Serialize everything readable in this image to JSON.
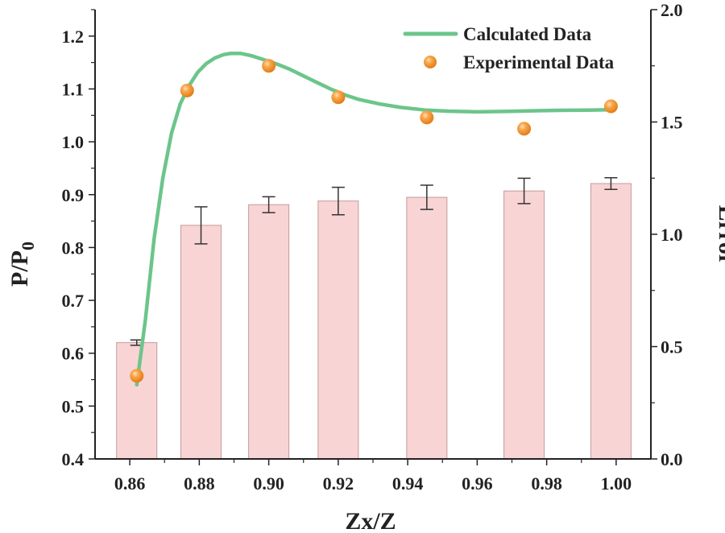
{
  "chart_data": {
    "type": "bar",
    "title": "",
    "xlabel": "Zx/Z",
    "ylabel": "P/P",
    "ylabel_subscript": "0",
    "y2label": "Error",
    "xlim": [
      0.85,
      1.01
    ],
    "ylim": [
      0.4,
      1.25
    ],
    "y2lim": [
      0.0,
      2.0
    ],
    "x_ticks": [
      "0.86",
      "0.88",
      "0.90",
      "0.92",
      "0.94",
      "0.96",
      "0.98",
      "1.00"
    ],
    "y_ticks": [
      "0.4",
      "0.5",
      "0.6",
      "0.7",
      "0.8",
      "0.9",
      "1.0",
      "1.1",
      "1.2"
    ],
    "y2_ticks": [
      "0.0",
      "0.5",
      "1.0",
      "1.5",
      "2.0"
    ],
    "legend": [
      "Calculated Data",
      "Experimental Data"
    ],
    "legend_position": "top-right",
    "bars": [
      {
        "x": 0.862,
        "value": 0.62,
        "err": 0.005
      },
      {
        "x": 0.8805,
        "value": 0.842,
        "err": 0.035
      },
      {
        "x": 0.9,
        "value": 0.881,
        "err": 0.015
      },
      {
        "x": 0.92,
        "value": 0.888,
        "err": 0.026
      },
      {
        "x": 0.9455,
        "value": 0.895,
        "err": 0.023
      },
      {
        "x": 0.9735,
        "value": 0.907,
        "err": 0.024
      },
      {
        "x": 0.9985,
        "value": 0.921,
        "err": 0.011
      }
    ],
    "experimental": [
      {
        "x": 0.862,
        "error": 0.37
      },
      {
        "x": 0.8765,
        "error": 1.64
      },
      {
        "x": 0.9,
        "error": 1.75
      },
      {
        "x": 0.92,
        "error": 1.61
      },
      {
        "x": 0.9455,
        "error": 1.52
      },
      {
        "x": 0.9735,
        "error": 1.47
      },
      {
        "x": 0.9985,
        "error": 1.57
      }
    ],
    "calculated": {
      "x": [
        0.862,
        0.8645,
        0.867,
        0.8695,
        0.872,
        0.8745,
        0.877,
        0.8795,
        0.882,
        0.8845,
        0.887,
        0.889,
        0.892,
        0.895,
        0.898,
        0.902,
        0.906,
        0.91,
        0.914,
        0.918,
        0.922,
        0.926,
        0.932,
        0.938,
        0.945,
        0.952,
        0.96,
        0.968,
        0.976,
        0.984,
        0.992,
        0.9985
      ],
      "error": [
        0.33,
        0.62,
        0.98,
        1.25,
        1.45,
        1.58,
        1.66,
        1.72,
        1.76,
        1.785,
        1.8,
        1.805,
        1.805,
        1.795,
        1.78,
        1.76,
        1.735,
        1.705,
        1.675,
        1.645,
        1.62,
        1.6,
        1.58,
        1.565,
        1.553,
        1.548,
        1.545,
        1.547,
        1.55,
        1.552,
        1.553,
        1.555
      ]
    },
    "colors": {
      "bar_fill": "#f9d4d5",
      "bar_stroke": "#c59a9b",
      "line": "#6cc58b",
      "point": "#f08a1e",
      "axis": "#222222"
    }
  }
}
